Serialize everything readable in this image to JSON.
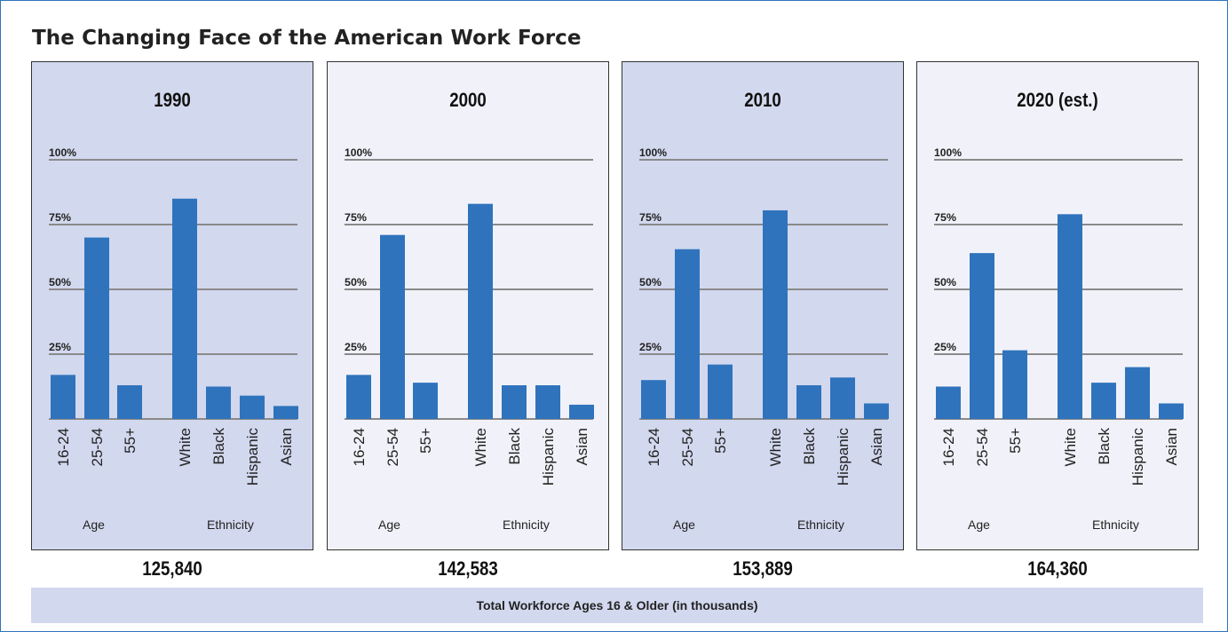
{
  "title": "The Changing Face of the American Work Force",
  "footer_label": "Total Workforce Ages 16 & Older (in thousands)",
  "colors": {
    "bar": "#2f73bd",
    "grid": "#8a8a8a",
    "panel_dark": "#d2d8ee",
    "panel_light": "#f1f2f9",
    "frame": "#2f75bb"
  },
  "group_labels": {
    "age": "Age",
    "ethnicity": "Ethnicity"
  },
  "chart_data": [
    {
      "type": "bar",
      "title": "1990",
      "categories": [
        "16-24",
        "25-54",
        "55+",
        "White",
        "Black",
        "Hispanic",
        "Asian"
      ],
      "values": [
        17,
        70,
        13,
        85,
        12.5,
        9,
        5
      ],
      "ylim": [
        0,
        100
      ],
      "yticks": [
        "25%",
        "50%",
        "75%",
        "100%"
      ],
      "grid": true,
      "total": "125,840"
    },
    {
      "type": "bar",
      "title": "2000",
      "categories": [
        "16-24",
        "25-54",
        "55+",
        "White",
        "Black",
        "Hispanic",
        "Asian"
      ],
      "values": [
        17,
        71,
        14,
        83,
        13,
        13,
        5.5
      ],
      "ylim": [
        0,
        100
      ],
      "yticks": [
        "25%",
        "50%",
        "75%",
        "100%"
      ],
      "grid": true,
      "total": "142,583"
    },
    {
      "type": "bar",
      "title": "2010",
      "categories": [
        "16-24",
        "25-54",
        "55+",
        "White",
        "Black",
        "Hispanic",
        "Asian"
      ],
      "values": [
        15,
        65.5,
        21,
        80.5,
        13,
        16,
        6
      ],
      "ylim": [
        0,
        100
      ],
      "yticks": [
        "25%",
        "50%",
        "75%",
        "100%"
      ],
      "grid": true,
      "total": "153,889"
    },
    {
      "type": "bar",
      "title": "2020 (est.)",
      "categories": [
        "16-24",
        "25-54",
        "55+",
        "White",
        "Black",
        "Hispanic",
        "Asian"
      ],
      "values": [
        12.5,
        64,
        26.5,
        79,
        14,
        20,
        6
      ],
      "ylim": [
        0,
        100
      ],
      "yticks": [
        "25%",
        "50%",
        "75%",
        "100%"
      ],
      "grid": true,
      "total": "164,360"
    }
  ]
}
